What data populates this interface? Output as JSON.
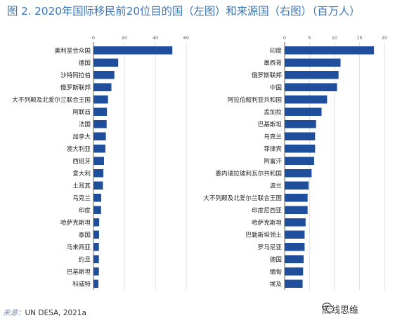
{
  "title": "图 2. 2020年国际移民前20位目的国（左图）和来源国（右图）（百万人）",
  "source_label": "来源：",
  "source_text": "UN DESA, 2021a",
  "watermark": "底线思维",
  "watermark_icon": "wechat-icon",
  "bar_color": "#1f4e9c",
  "chart_data": [
    {
      "type": "bar",
      "orientation": "horizontal",
      "title": "",
      "xlim": [
        0,
        60
      ],
      "xticks": [
        0,
        20,
        40,
        60
      ],
      "categories": [
        "美利坚合众国",
        "德国",
        "沙特阿拉伯",
        "俄罗斯联邦",
        "大不列颠及北爱尔兰联合王国",
        "阿联酋",
        "法国",
        "加拿大",
        "澳大利亚",
        "西班牙",
        "意大利",
        "土耳其",
        "乌克兰",
        "印度",
        "哈萨克斯坦",
        "泰国",
        "马来西亚",
        "约旦",
        "巴基斯坦",
        "科威特"
      ],
      "values": [
        51,
        16,
        13.5,
        11.6,
        9.4,
        8.7,
        8.5,
        8.0,
        7.7,
        6.8,
        6.4,
        6.1,
        5.0,
        4.9,
        3.7,
        3.6,
        3.5,
        3.5,
        3.5,
        3.2
      ]
    },
    {
      "type": "bar",
      "orientation": "horizontal",
      "title": "",
      "xlim": [
        0,
        20
      ],
      "xticks": [
        0,
        5,
        10,
        15,
        20
      ],
      "categories": [
        "印度",
        "墨西哥",
        "俄罗斯联邦",
        "中国",
        "阿拉伯叙利亚共和国",
        "孟加拉",
        "巴基斯坦",
        "乌克兰",
        "菲律宾",
        "阿富汗",
        "委内瑞拉玻利瓦尔共和国",
        "波兰",
        "大不列颠及北爱尔兰联合王国",
        "印度尼西亚",
        "哈萨克斯坦",
        "巴勒斯坦领土",
        "罗马尼亚",
        "德国",
        "缅甸",
        "埃及"
      ],
      "values": [
        17.9,
        11.2,
        10.8,
        10.5,
        8.5,
        7.4,
        6.3,
        6.1,
        6.1,
        5.9,
        5.4,
        4.8,
        4.6,
        4.6,
        4.2,
        4.0,
        4.0,
        3.8,
        3.7,
        3.6
      ]
    }
  ]
}
